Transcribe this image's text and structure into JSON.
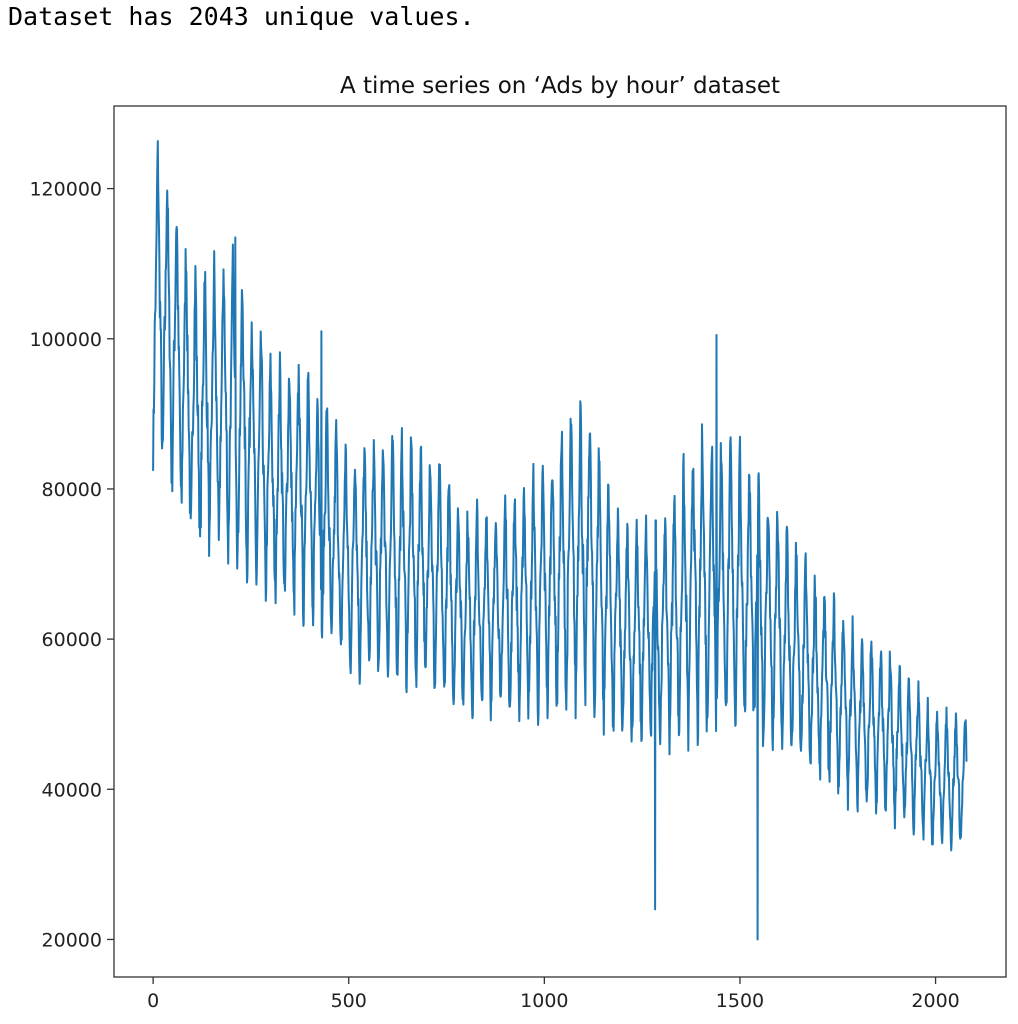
{
  "output": {
    "text": "Dataset has 2043 unique values."
  },
  "chart_data": {
    "type": "line",
    "title": "A time series on ‘Ads by hour’ dataset",
    "xlabel": "",
    "ylabel": "",
    "xlim": [
      -100,
      2180
    ],
    "ylim": [
      15000,
      131000
    ],
    "xticks": [
      0,
      500,
      1000,
      1500,
      2000
    ],
    "yticks": [
      20000,
      40000,
      60000,
      80000,
      100000,
      120000
    ],
    "grid": false,
    "legend": "none",
    "colors": {
      "line": "#1f77b4",
      "axes": "#333333",
      "background": "#ffffff"
    },
    "series": [
      {
        "name": "Ads",
        "n_points": 2080,
        "period_hours": 24,
        "description_keypoints": {
          "x": [
            0,
            50,
            100,
            200,
            300,
            400,
            500,
            600,
            700,
            800,
            900,
            1000,
            1100,
            1200,
            1300,
            1400,
            1500,
            1600,
            1700,
            1800,
            1900,
            2000,
            2080
          ],
          "y_high": [
            126000,
            118000,
            108000,
            110000,
            96000,
            95000,
            84000,
            86000,
            85000,
            76000,
            78000,
            82000,
            92000,
            74000,
            75000,
            87000,
            84000,
            76000,
            67000,
            61000,
            57000,
            50000,
            49000
          ],
          "y_low": [
            86000,
            81000,
            73000,
            72000,
            66000,
            63000,
            56000,
            56000,
            54000,
            51000,
            50000,
            51000,
            52000,
            47000,
            47000,
            48000,
            50000,
            45000,
            42000,
            38000,
            36000,
            33000,
            33000
          ]
        },
        "spikes": [
          {
            "x": 1283,
            "y": 24000
          },
          {
            "x": 1545,
            "y": 20000
          },
          {
            "x": 1440,
            "y": 100500
          },
          {
            "x": 430,
            "y": 101000
          },
          {
            "x": 210,
            "y": 113500
          }
        ]
      }
    ]
  }
}
